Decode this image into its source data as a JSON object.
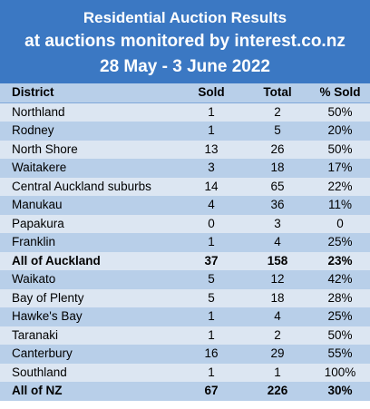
{
  "header": {
    "title": "Residential Auction Results",
    "subtitle": "at auctions monitored by interest.co.nz",
    "dates": "28 May - 3 June 2022"
  },
  "columns": [
    "District",
    "Sold",
    "Total",
    "% Sold"
  ],
  "rows": [
    {
      "district": "Northland",
      "sold": "1",
      "total": "2",
      "pct": "50%",
      "bold": false
    },
    {
      "district": "Rodney",
      "sold": "1",
      "total": "5",
      "pct": "20%",
      "bold": false
    },
    {
      "district": "North Shore",
      "sold": "13",
      "total": "26",
      "pct": "50%",
      "bold": false
    },
    {
      "district": "Waitakere",
      "sold": "3",
      "total": "18",
      "pct": "17%",
      "bold": false
    },
    {
      "district": "Central Auckland suburbs",
      "sold": "14",
      "total": "65",
      "pct": "22%",
      "bold": false
    },
    {
      "district": "Manukau",
      "sold": "4",
      "total": "36",
      "pct": "11%",
      "bold": false
    },
    {
      "district": "Papakura",
      "sold": "0",
      "total": "3",
      "pct": "0",
      "bold": false
    },
    {
      "district": "Franklin",
      "sold": "1",
      "total": "4",
      "pct": "25%",
      "bold": false
    },
    {
      "district": "All of Auckland",
      "sold": "37",
      "total": "158",
      "pct": "23%",
      "bold": true
    },
    {
      "district": "Waikato",
      "sold": "5",
      "total": "12",
      "pct": "42%",
      "bold": false
    },
    {
      "district": "Bay of Plenty",
      "sold": "5",
      "total": "18",
      "pct": "28%",
      "bold": false
    },
    {
      "district": "Hawke's Bay",
      "sold": "1",
      "total": "4",
      "pct": "25%",
      "bold": false
    },
    {
      "district": "Taranaki",
      "sold": "1",
      "total": "2",
      "pct": "50%",
      "bold": false
    },
    {
      "district": "Canterbury",
      "sold": "16",
      "total": "29",
      "pct": "55%",
      "bold": false
    },
    {
      "district": "Southland",
      "sold": "1",
      "total": "1",
      "pct": "100%",
      "bold": false
    },
    {
      "district": "All of NZ",
      "sold": "67",
      "total": "226",
      "pct": "30%",
      "bold": true
    }
  ],
  "colors": {
    "header_bg": "#3b78c3",
    "row_light": "#dce6f2",
    "row_dark": "#b8cfe9"
  }
}
